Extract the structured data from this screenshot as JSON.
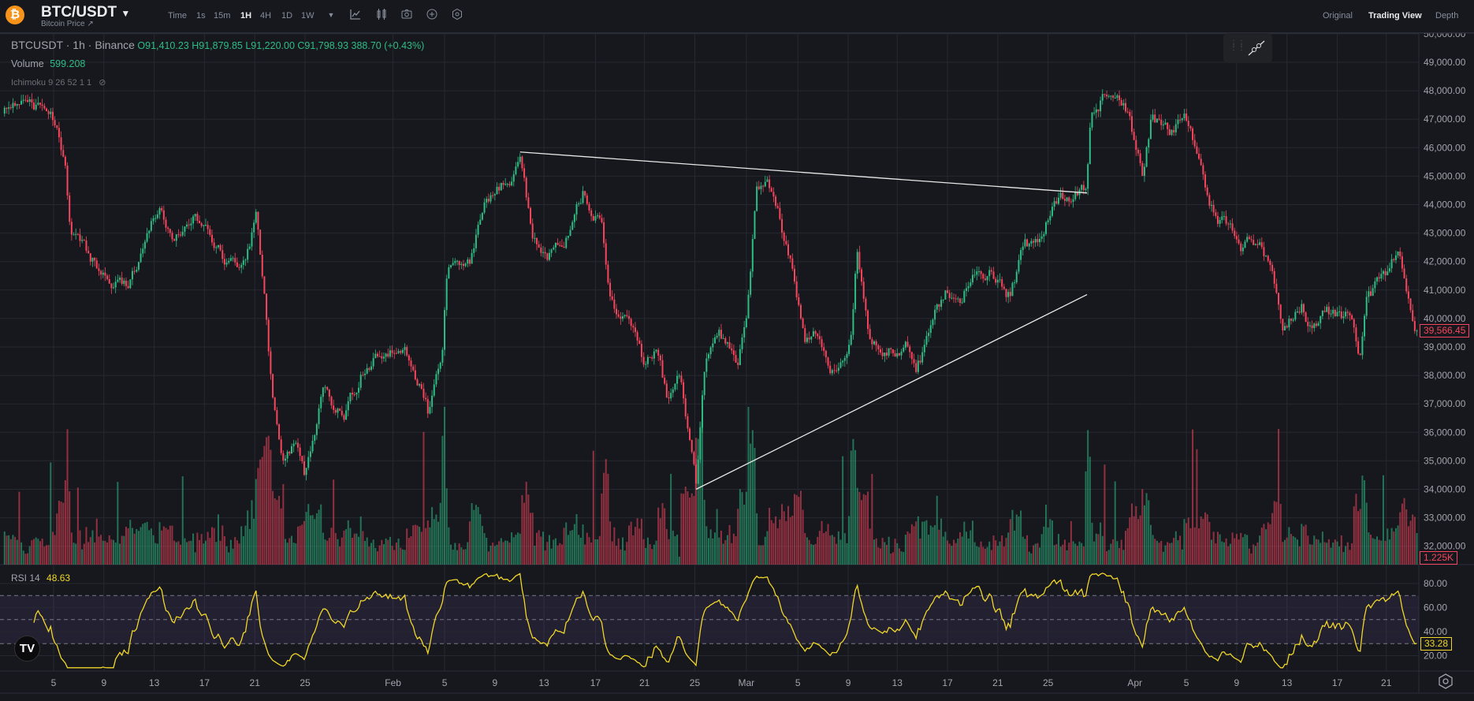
{
  "header": {
    "symbol": "BTC/USDT",
    "subtitle": "Bitcoin Price ↗",
    "logo_glyph": "₿",
    "timeframes": [
      "Time",
      "1s",
      "15m",
      "1H",
      "4H",
      "1D",
      "1W"
    ],
    "active_timeframe": "1H",
    "views": [
      "Original",
      "Trading View",
      "Depth"
    ],
    "active_view": "Trading View"
  },
  "legend": {
    "title": "BTCUSDT · 1h · Binance",
    "open": "O91,410.23",
    "high": "H91,879.85",
    "low": "L91,220.00",
    "close": "C91,798.93",
    "change": "388.70 (+0.43%)",
    "volume_label": "Volume",
    "volume_value": "599.208",
    "ichimoku": "Ichimoku 9 26 52 1 1",
    "rsi_label": "RSI 14",
    "rsi_value": "48.63"
  },
  "markers": {
    "last_price": "39,566.45",
    "last_volume": "1.225K",
    "last_rsi": "33.28"
  },
  "colors": {
    "up": "#2ebd85",
    "down": "#f6465d",
    "rsi": "#f0d629",
    "bg": "#17181d",
    "grid": "#262931"
  },
  "chart_data": {
    "type": "candlestick",
    "interval": "1h",
    "price_path": [
      [
        1.1,
        47200
      ],
      [
        2.2,
        47800
      ],
      [
        3.7,
        47500
      ],
      [
        5.2,
        47000
      ],
      [
        6.0,
        45000
      ],
      [
        6.3,
        43000
      ],
      [
        7.5,
        42500
      ],
      [
        9.0,
        41500
      ],
      [
        10.8,
        41000
      ],
      [
        12.0,
        42500
      ],
      [
        13.4,
        44000
      ],
      [
        14.6,
        42800
      ],
      [
        16.4,
        43500
      ],
      [
        18.7,
        42000
      ],
      [
        20.2,
        41800
      ],
      [
        21.1,
        43500
      ],
      [
        21.7,
        41000
      ],
      [
        22.4,
        37000
      ],
      [
        23.2,
        35000
      ],
      [
        24.3,
        35500
      ],
      [
        25.0,
        34500
      ],
      [
        26.5,
        37500
      ],
      [
        28.0,
        36500
      ],
      [
        29.9,
        38500
      ],
      [
        32.1,
        39000
      ],
      [
        33.6,
        38500
      ],
      [
        34.8,
        36700
      ],
      [
        35.9,
        38500
      ],
      [
        36.3,
        41500
      ],
      [
        38.1,
        41800
      ],
      [
        39.2,
        44300
      ],
      [
        40.4,
        44500
      ],
      [
        42.2,
        45500
      ],
      [
        43.0,
        43000
      ],
      [
        44.1,
        42000
      ],
      [
        45.6,
        42500
      ],
      [
        47.1,
        44300
      ],
      [
        48.6,
        43500
      ],
      [
        49.3,
        40500
      ],
      [
        50.8,
        40000
      ],
      [
        51.9,
        38500
      ],
      [
        53.1,
        38800
      ],
      [
        53.8,
        37200
      ],
      [
        54.9,
        38000
      ],
      [
        56.1,
        34200
      ],
      [
        56.8,
        38500
      ],
      [
        57.9,
        39300
      ],
      [
        59.4,
        38300
      ],
      [
        60.2,
        40500
      ],
      [
        60.9,
        44500
      ],
      [
        61.7,
        44800
      ],
      [
        62.8,
        43500
      ],
      [
        63.9,
        41500
      ],
      [
        64.7,
        39200
      ],
      [
        65.8,
        39500
      ],
      [
        66.9,
        38200
      ],
      [
        68.4,
        39200
      ],
      [
        68.9,
        42300
      ],
      [
        69.9,
        39500
      ],
      [
        71.4,
        39000
      ],
      [
        72.9,
        39000
      ],
      [
        73.6,
        38200
      ],
      [
        74.8,
        39500
      ],
      [
        75.9,
        41000
      ],
      [
        77.0,
        40500
      ],
      [
        78.5,
        42000
      ],
      [
        80.0,
        41500
      ],
      [
        81.1,
        40800
      ],
      [
        82.2,
        42500
      ],
      [
        83.7,
        42500
      ],
      [
        84.5,
        44200
      ],
      [
        86.3,
        44500
      ],
      [
        87.1,
        44500
      ],
      [
        87.5,
        47000
      ],
      [
        88.6,
        47800
      ],
      [
        90.5,
        47300
      ],
      [
        91.6,
        45000
      ],
      [
        92.3,
        47000
      ],
      [
        93.8,
        46500
      ],
      [
        94.9,
        47200
      ],
      [
        96.4,
        45000
      ],
      [
        97.2,
        43800
      ],
      [
        98.7,
        43000
      ],
      [
        99.4,
        42500
      ],
      [
        100.9,
        42800
      ],
      [
        102.0,
        41500
      ],
      [
        102.8,
        39500
      ],
      [
        104.3,
        40500
      ],
      [
        105.0,
        39800
      ],
      [
        106.2,
        40300
      ],
      [
        108.4,
        40000
      ],
      [
        108.9,
        38800
      ],
      [
        109.5,
        40800
      ],
      [
        111.0,
        41500
      ],
      [
        112.0,
        42500
      ],
      [
        112.7,
        40500
      ],
      [
        113.6,
        39500
      ]
    ],
    "trendlines": [
      {
        "from": [
          42.1,
          45850
        ],
        "to": [
          87.2,
          44410
        ]
      },
      {
        "from": [
          56.1,
          34000
        ],
        "to": [
          87.2,
          40840
        ]
      }
    ],
    "price_ticks": [
      "50,000.00",
      "49,000.00",
      "48,000.00",
      "47,000.00",
      "46,000.00",
      "45,000.00",
      "44,000.00",
      "43,000.00",
      "42,000.00",
      "41,000.00",
      "40,000.00",
      "39,000.00",
      "38,000.00",
      "37,000.00",
      "36,000.00",
      "35,000.00",
      "34,000.00",
      "33,000.00",
      "32,000.00"
    ],
    "price_tick_values": [
      50000,
      49000,
      48000,
      47000,
      46000,
      45000,
      44000,
      43000,
      42000,
      41000,
      40000,
      39000,
      38000,
      37000,
      36000,
      35000,
      34000,
      33000,
      32000
    ],
    "rsi_ticks": [
      "80.00",
      "60.00",
      "40.00",
      "20.00"
    ],
    "rsi_tick_values": [
      80,
      60,
      40,
      20
    ],
    "rsi_bands": [
      70,
      50,
      30
    ],
    "date_ticks": [
      {
        "label": "5",
        "day": 5
      },
      {
        "label": "9",
        "day": 9
      },
      {
        "label": "13",
        "day": 13
      },
      {
        "label": "17",
        "day": 17
      },
      {
        "label": "21",
        "day": 21
      },
      {
        "label": "25",
        "day": 25
      },
      {
        "label": "Feb",
        "day": 32
      },
      {
        "label": "5",
        "day": 36.1
      },
      {
        "label": "9",
        "day": 40.1
      },
      {
        "label": "13",
        "day": 44
      },
      {
        "label": "17",
        "day": 48.1
      },
      {
        "label": "21",
        "day": 52
      },
      {
        "label": "25",
        "day": 56
      },
      {
        "label": "Mar",
        "day": 60.1
      },
      {
        "label": "5",
        "day": 64.2
      },
      {
        "label": "9",
        "day": 68.2
      },
      {
        "label": "13",
        "day": 72.1
      },
      {
        "label": "17",
        "day": 76.1
      },
      {
        "label": "21",
        "day": 80.1
      },
      {
        "label": "25",
        "day": 84.1
      },
      {
        "label": "Apr",
        "day": 91
      },
      {
        "label": "5",
        "day": 95.1
      },
      {
        "label": "9",
        "day": 99.1
      },
      {
        "label": "13",
        "day": 103.1
      },
      {
        "label": "17",
        "day": 107.1
      },
      {
        "label": "21",
        "day": 111
      }
    ]
  }
}
